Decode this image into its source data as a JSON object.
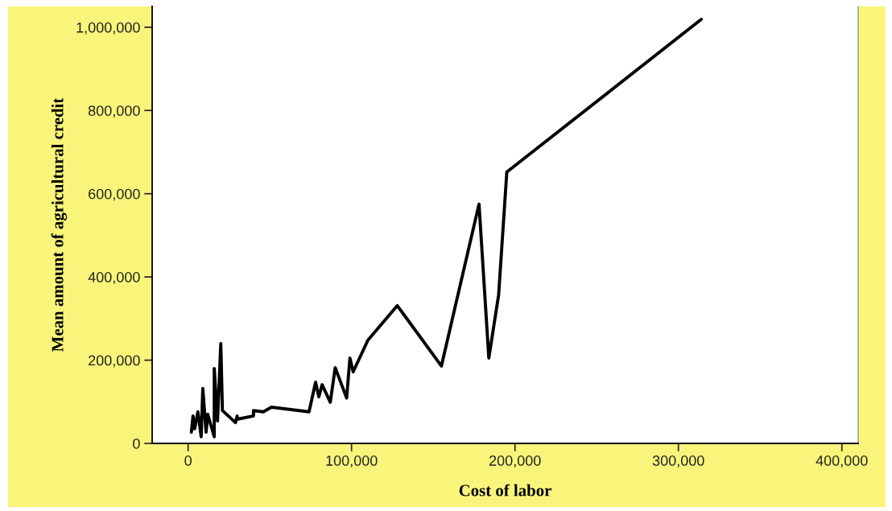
{
  "chart_data": {
    "type": "line",
    "xlabel": "Cost of labor",
    "ylabel": "Mean amount of agricultural credit",
    "series": [
      {
        "color": "#000000",
        "x": [
          2000,
          3000,
          4000,
          6000,
          8000,
          9000,
          11000,
          12000,
          16000,
          16000,
          18000,
          20000,
          21000,
          29000,
          30000,
          30000,
          40000,
          40000,
          46000,
          51000,
          74000,
          78000,
          80000,
          82000,
          87000,
          90000,
          97000,
          99000,
          101000,
          110000,
          128000,
          155000,
          178000,
          184000,
          190000,
          195000,
          314000
        ],
        "values": [
          27000,
          66000,
          35000,
          76000,
          16000,
          132000,
          27000,
          70000,
          16000,
          180000,
          54000,
          240000,
          79000,
          50000,
          66000,
          58000,
          66000,
          79000,
          76000,
          87000,
          76000,
          147000,
          112000,
          141000,
          99000,
          182000,
          109000,
          205000,
          172000,
          248000,
          331000,
          186000,
          575000,
          205000,
          357000,
          652000,
          1019000
        ]
      }
    ],
    "xlim": [
      -22000,
      410000
    ],
    "xticks": [
      {
        "value": 0,
        "label": "0"
      },
      {
        "value": 100000,
        "label": "100,000"
      },
      {
        "value": 200000,
        "label": "200,000"
      },
      {
        "value": 300000,
        "label": "300,000"
      },
      {
        "value": 400000,
        "label": "400,000"
      }
    ],
    "ylim": [
      0,
      1050000
    ],
    "yticks": [
      {
        "value": 0,
        "label": "0"
      },
      {
        "value": 200000,
        "label": "200,000"
      },
      {
        "value": 400000,
        "label": "400,000"
      },
      {
        "value": 600000,
        "label": "600,000"
      },
      {
        "value": 800000,
        "label": "800,000"
      },
      {
        "value": 1000000,
        "label": "1,000,000"
      }
    ],
    "grid": false,
    "legend": false,
    "marker": "none",
    "line_style": "solid"
  }
}
